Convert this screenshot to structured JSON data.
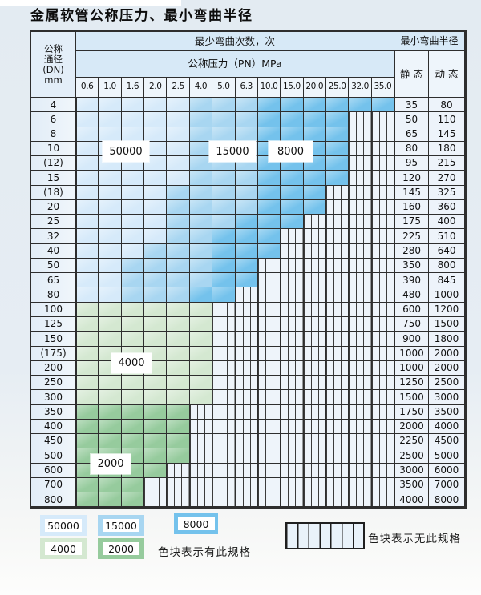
{
  "title": "金属软管公称压力、最小弯曲半径",
  "table": {
    "corner_header": {
      "line1": "公称",
      "line2": "通径",
      "line3": "(DN)",
      "line4": "mm"
    },
    "bend_cycles_header": "最少弯曲次数，次",
    "pressure_header": "公称压力（PN）MPa",
    "radius_header": "最小弯曲半径",
    "static_header": "静 态",
    "dynamic_header": "动 态",
    "pressure_columns": [
      "0.6",
      "1.0",
      "1.6",
      "2.0",
      "2.5",
      "4.0",
      "5.0",
      "6.3",
      "10.0",
      "15.0",
      "20.0",
      "25.0",
      "32.0",
      "35.0"
    ],
    "rows": [
      {
        "dn": "4",
        "static": "35",
        "dyn": "80",
        "max_pn": "35.0",
        "mid_from": "4.0",
        "dark_from": "10.0"
      },
      {
        "dn": "6",
        "static": "50",
        "dyn": "110",
        "max_pn": "25.0",
        "mid_from": "4.0",
        "dark_from": "10.0"
      },
      {
        "dn": "8",
        "static": "65",
        "dyn": "145",
        "max_pn": "25.0",
        "mid_from": "4.0",
        "dark_from": "10.0"
      },
      {
        "dn": "10",
        "static": "80",
        "dyn": "180",
        "max_pn": "25.0",
        "mid_from": "4.0",
        "dark_from": "10.0"
      },
      {
        "dn": "(12)",
        "static": "95",
        "dyn": "215",
        "max_pn": "25.0",
        "mid_from": "4.0",
        "dark_from": "10.0"
      },
      {
        "dn": "15",
        "static": "120",
        "dyn": "270",
        "max_pn": "25.0",
        "mid_from": "4.0",
        "dark_from": "10.0"
      },
      {
        "dn": "(18)",
        "static": "145",
        "dyn": "325",
        "max_pn": "20.0",
        "mid_from": "2.5",
        "dark_from": "10.0"
      },
      {
        "dn": "20",
        "static": "160",
        "dyn": "360",
        "max_pn": "20.0",
        "mid_from": "2.5",
        "dark_from": "10.0"
      },
      {
        "dn": "25",
        "static": "175",
        "dyn": "400",
        "max_pn": "15.0",
        "mid_from": "2.5",
        "dark_from": "6.3"
      },
      {
        "dn": "32",
        "static": "225",
        "dyn": "510",
        "max_pn": "10.0",
        "mid_from": "2.5",
        "dark_from": "5.0"
      },
      {
        "dn": "40",
        "static": "280",
        "dyn": "640",
        "max_pn": "10.0",
        "mid_from": "2.0",
        "dark_from": "5.0"
      },
      {
        "dn": "50",
        "static": "350",
        "dyn": "800",
        "max_pn": "6.3",
        "mid_from": "1.6",
        "dark_from": "5.0"
      },
      {
        "dn": "65",
        "static": "390",
        "dyn": "845",
        "max_pn": "6.3",
        "mid_from": "1.6",
        "dark_from": "5.0"
      },
      {
        "dn": "80",
        "static": "480",
        "dyn": "1000",
        "max_pn": "5.0",
        "mid_from": "1.6",
        "dark_from": "4.0"
      },
      {
        "dn": "100",
        "static": "600",
        "dyn": "1200",
        "max_pn": "4.0",
        "zone": "4000"
      },
      {
        "dn": "125",
        "static": "750",
        "dyn": "1500",
        "max_pn": "4.0",
        "zone": "4000"
      },
      {
        "dn": "150",
        "static": "900",
        "dyn": "1800",
        "max_pn": "4.0",
        "zone": "4000"
      },
      {
        "dn": "(175)",
        "static": "1000",
        "dyn": "2000",
        "max_pn": "4.0",
        "zone": "4000"
      },
      {
        "dn": "200",
        "static": "1000",
        "dyn": "2000",
        "max_pn": "4.0",
        "zone": "4000"
      },
      {
        "dn": "250",
        "static": "1250",
        "dyn": "2500",
        "max_pn": "4.0",
        "zone": "4000"
      },
      {
        "dn": "300",
        "static": "1500",
        "dyn": "3000",
        "max_pn": "4.0",
        "zone": "4000"
      },
      {
        "dn": "350",
        "static": "1750",
        "dyn": "3500",
        "max_pn": "2.5",
        "zone": "2000"
      },
      {
        "dn": "400",
        "static": "2000",
        "dyn": "4000",
        "max_pn": "2.5",
        "zone": "2000"
      },
      {
        "dn": "450",
        "static": "2250",
        "dyn": "4500",
        "max_pn": "2.5",
        "zone": "2000"
      },
      {
        "dn": "500",
        "static": "2500",
        "dyn": "5000",
        "max_pn": "2.5",
        "zone": "2000"
      },
      {
        "dn": "600",
        "static": "3000",
        "dyn": "6000",
        "max_pn": "2.0",
        "zone": "2000"
      },
      {
        "dn": "700",
        "static": "3500",
        "dyn": "7000",
        "max_pn": "1.6",
        "zone": "2000"
      },
      {
        "dn": "800",
        "static": "4000",
        "dyn": "8000",
        "max_pn": "1.6",
        "zone": "2000"
      }
    ]
  },
  "zone_labels": [
    {
      "text": "50000"
    },
    {
      "text": "15000"
    },
    {
      "text": "8000"
    },
    {
      "text": "4000"
    },
    {
      "text": "2000"
    }
  ],
  "legend": {
    "items": [
      {
        "value": "50000",
        "color_key": "c50000"
      },
      {
        "value": "15000",
        "color_key": "c15000"
      },
      {
        "value": "8000",
        "color_key": "c8000"
      },
      {
        "value": "4000",
        "color_key": "c4000"
      },
      {
        "value": "2000",
        "color_key": "c2000"
      }
    ],
    "available_text": "色块表示有此规格",
    "unavailable_text": "色块表示无此规格"
  },
  "colors": {
    "c50000": "#d6eafa",
    "c15000": "#a8d6f1",
    "c8000": "#74c2ec",
    "c4000": "#d4e8d1",
    "c2000": "#96cb9d",
    "none_bg": "#eef4fa",
    "grid_line": "#2e2e2e"
  }
}
